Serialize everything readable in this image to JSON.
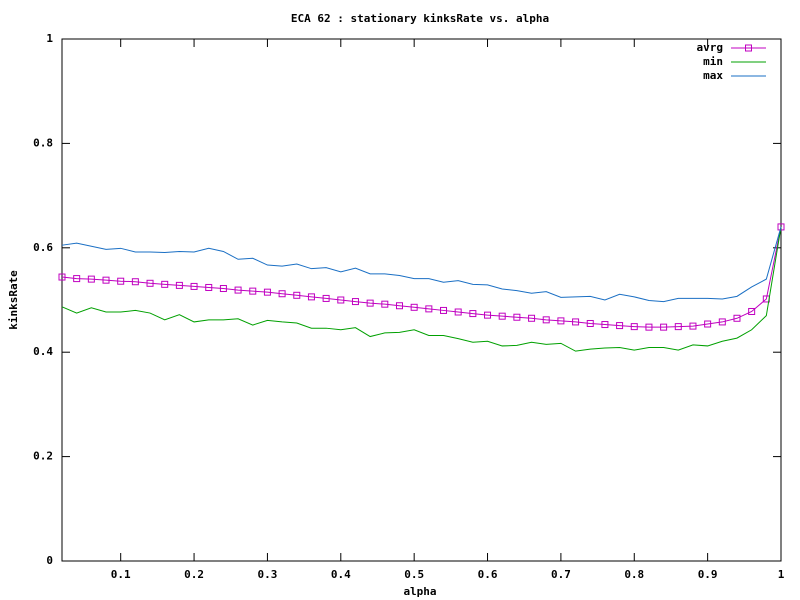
{
  "chart_data": {
    "type": "line",
    "title": "ECA 62 : stationary kinksRate vs. alpha",
    "x_label": "alpha",
    "y_label": "kinksRate",
    "x": [
      0.02,
      0.04,
      0.06,
      0.08,
      0.1,
      0.12,
      0.14,
      0.16,
      0.18,
      0.2,
      0.22,
      0.24,
      0.26,
      0.28,
      0.3,
      0.32,
      0.34,
      0.36,
      0.38,
      0.4,
      0.42,
      0.44,
      0.46,
      0.48,
      0.5,
      0.52,
      0.54,
      0.56,
      0.58,
      0.6,
      0.62,
      0.64,
      0.66,
      0.68,
      0.7,
      0.72,
      0.74,
      0.76,
      0.78,
      0.8,
      0.82,
      0.84,
      0.86,
      0.88,
      0.9,
      0.92,
      0.94,
      0.96,
      0.98,
      1
    ],
    "series": [
      {
        "name": "avrg",
        "color": "#c000c0",
        "marker": "square",
        "values": [
          0.544,
          0.541,
          0.54,
          0.538,
          0.536,
          0.535,
          0.532,
          0.53,
          0.528,
          0.526,
          0.524,
          0.522,
          0.519,
          0.517,
          0.515,
          0.512,
          0.509,
          0.506,
          0.503,
          0.5,
          0.497,
          0.494,
          0.492,
          0.489,
          0.486,
          0.483,
          0.48,
          0.477,
          0.474,
          0.471,
          0.469,
          0.467,
          0.465,
          0.462,
          0.46,
          0.458,
          0.455,
          0.453,
          0.451,
          0.449,
          0.448,
          0.448,
          0.449,
          0.45,
          0.454,
          0.458,
          0.465,
          0.478,
          0.502,
          0.64
        ]
      },
      {
        "name": "min",
        "color": "#00a000",
        "values": [
          0.487,
          0.475,
          0.485,
          0.477,
          0.477,
          0.48,
          0.475,
          0.462,
          0.472,
          0.458,
          0.462,
          0.462,
          0.464,
          0.452,
          0.461,
          0.458,
          0.456,
          0.446,
          0.446,
          0.443,
          0.447,
          0.43,
          0.437,
          0.438,
          0.443,
          0.432,
          0.432,
          0.426,
          0.419,
          0.421,
          0.412,
          0.413,
          0.419,
          0.415,
          0.417,
          0.402,
          0.406,
          0.408,
          0.409,
          0.404,
          0.409,
          0.409,
          0.404,
          0.414,
          0.412,
          0.421,
          0.427,
          0.443,
          0.47,
          0.64
        ]
      },
      {
        "name": "max",
        "color": "#1a6fc4",
        "values": [
          0.605,
          0.609,
          0.603,
          0.597,
          0.599,
          0.592,
          0.592,
          0.591,
          0.593,
          0.592,
          0.599,
          0.593,
          0.578,
          0.58,
          0.567,
          0.565,
          0.569,
          0.56,
          0.562,
          0.554,
          0.561,
          0.55,
          0.55,
          0.547,
          0.541,
          0.541,
          0.534,
          0.537,
          0.53,
          0.529,
          0.521,
          0.518,
          0.513,
          0.516,
          0.505,
          0.506,
          0.507,
          0.5,
          0.511,
          0.506,
          0.499,
          0.497,
          0.503,
          0.503,
          0.503,
          0.502,
          0.507,
          0.525,
          0.54,
          0.64
        ]
      }
    ],
    "xlim": [
      0.02,
      1
    ],
    "ylim": [
      0,
      1
    ],
    "xticks": [
      0.1,
      0.2,
      0.3,
      0.4,
      0.5,
      0.6,
      0.7,
      0.8,
      0.9,
      1
    ],
    "yticks": [
      0,
      0.2,
      0.4,
      0.6,
      0.8,
      1
    ],
    "legend": "top right",
    "grid": false
  }
}
